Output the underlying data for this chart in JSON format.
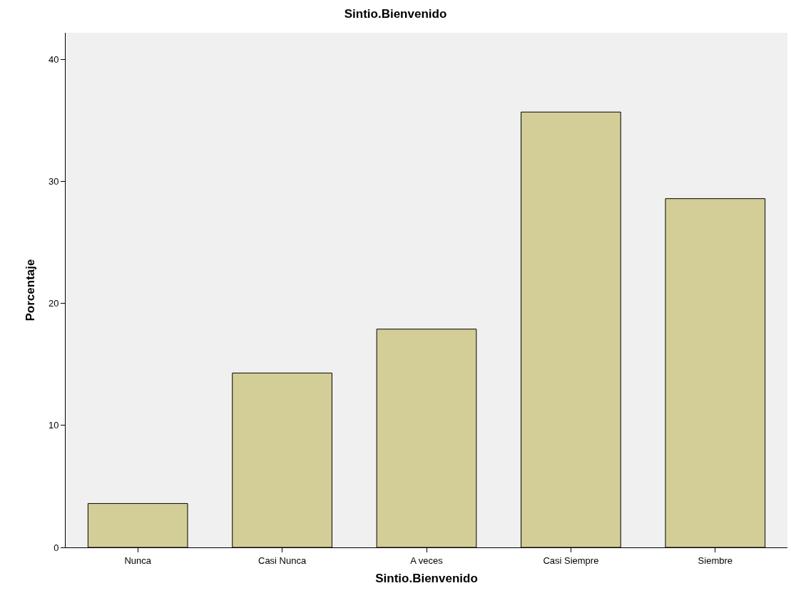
{
  "chart_data": {
    "type": "bar",
    "title": "Sintio.Bienvenido",
    "xlabel": "Sintio.Bienvenido",
    "ylabel": "Porcentaje",
    "categories": [
      "Nunca",
      "Casi Nunca",
      "A veces",
      "Casi Siempre",
      "Siembre"
    ],
    "values": [
      3.6,
      14.3,
      17.9,
      35.7,
      28.6
    ],
    "color": "#d3ce97",
    "ylim": [
      0,
      42.2
    ],
    "yticks": [
      0,
      10,
      20,
      30,
      40
    ],
    "grid": false
  }
}
